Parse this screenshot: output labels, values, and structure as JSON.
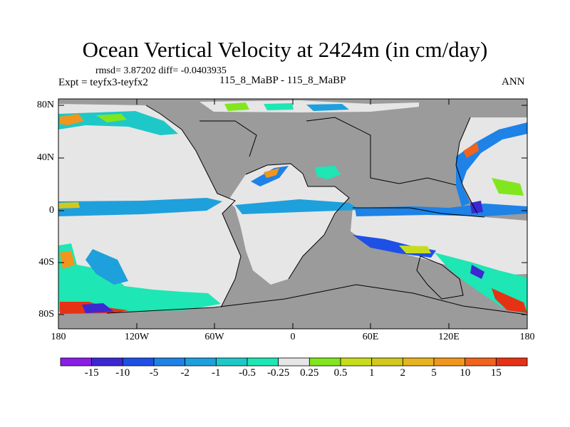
{
  "title": "Ocean Vertical Velocity at 2424m (in cm/day)",
  "stats": "rmsd= 3.87202 diff= -0.0403935",
  "expt": "Expt = teyfx3-teyfx2",
  "center_label": "115_8_MaBP - 115_8_MaBP",
  "season": "ANN",
  "y_ticks": [
    "80N",
    "40N",
    "0",
    "40S",
    "80S"
  ],
  "x_ticks": [
    "180",
    "120W",
    "60W",
    "0",
    "60E",
    "120E",
    "180"
  ],
  "colorbar": {
    "colors": [
      "#8a1ee6",
      "#3c28d2",
      "#1e50e6",
      "#1e82e6",
      "#1ea0dc",
      "#1ec8c8",
      "#1ee6b4",
      "#e6e6e6",
      "#82e61e",
      "#c8dc1e",
      "#d2c81e",
      "#e6b41e",
      "#f0961e",
      "#f0641e",
      "#e63214"
    ],
    "labels": [
      "-15",
      "-10",
      "-5",
      "-2",
      "-1",
      "-0.5",
      "-0.25",
      "0.25",
      "0.5",
      "1",
      "2",
      "5",
      "10",
      "15"
    ]
  },
  "legend_colors": {
    "land": "#9b9b9b",
    "near_zero": "#e6e6e6"
  }
}
